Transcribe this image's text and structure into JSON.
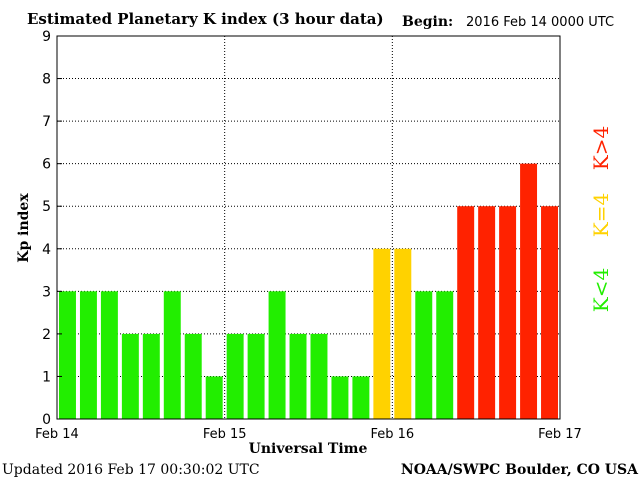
{
  "chart_data": {
    "type": "bar",
    "title": "Estimated Planetary K index (3 hour data)",
    "begin_label": "Begin:",
    "begin_value": "2016 Feb 14 0000 UTC",
    "xlabel": "Universal Time",
    "ylabel": "Kp index",
    "ylim": [
      0,
      9
    ],
    "yticks": [
      "0",
      "1",
      "2",
      "3",
      "4",
      "5",
      "6",
      "7",
      "8",
      "9"
    ],
    "xticks": [
      "Feb 14",
      "Feb 15",
      "Feb 16",
      "Feb 17"
    ],
    "grid": true,
    "bar_interval_hours": 3,
    "values": [
      3,
      3,
      3,
      2,
      2,
      3,
      2,
      1,
      2,
      2,
      3,
      2,
      2,
      1,
      1,
      4,
      4,
      3,
      3,
      5,
      5,
      5,
      6,
      5
    ],
    "colors": {
      "low": "#22ee00",
      "mid": "#ffd200",
      "high": "#ff2200"
    },
    "legend": {
      "low": "K<4",
      "mid": "K=4",
      "high": "K>4"
    },
    "footer_left": "Updated 2016 Feb 17 00:30:02 UTC",
    "footer_right": "NOAA/SWPC Boulder, CO USA"
  }
}
